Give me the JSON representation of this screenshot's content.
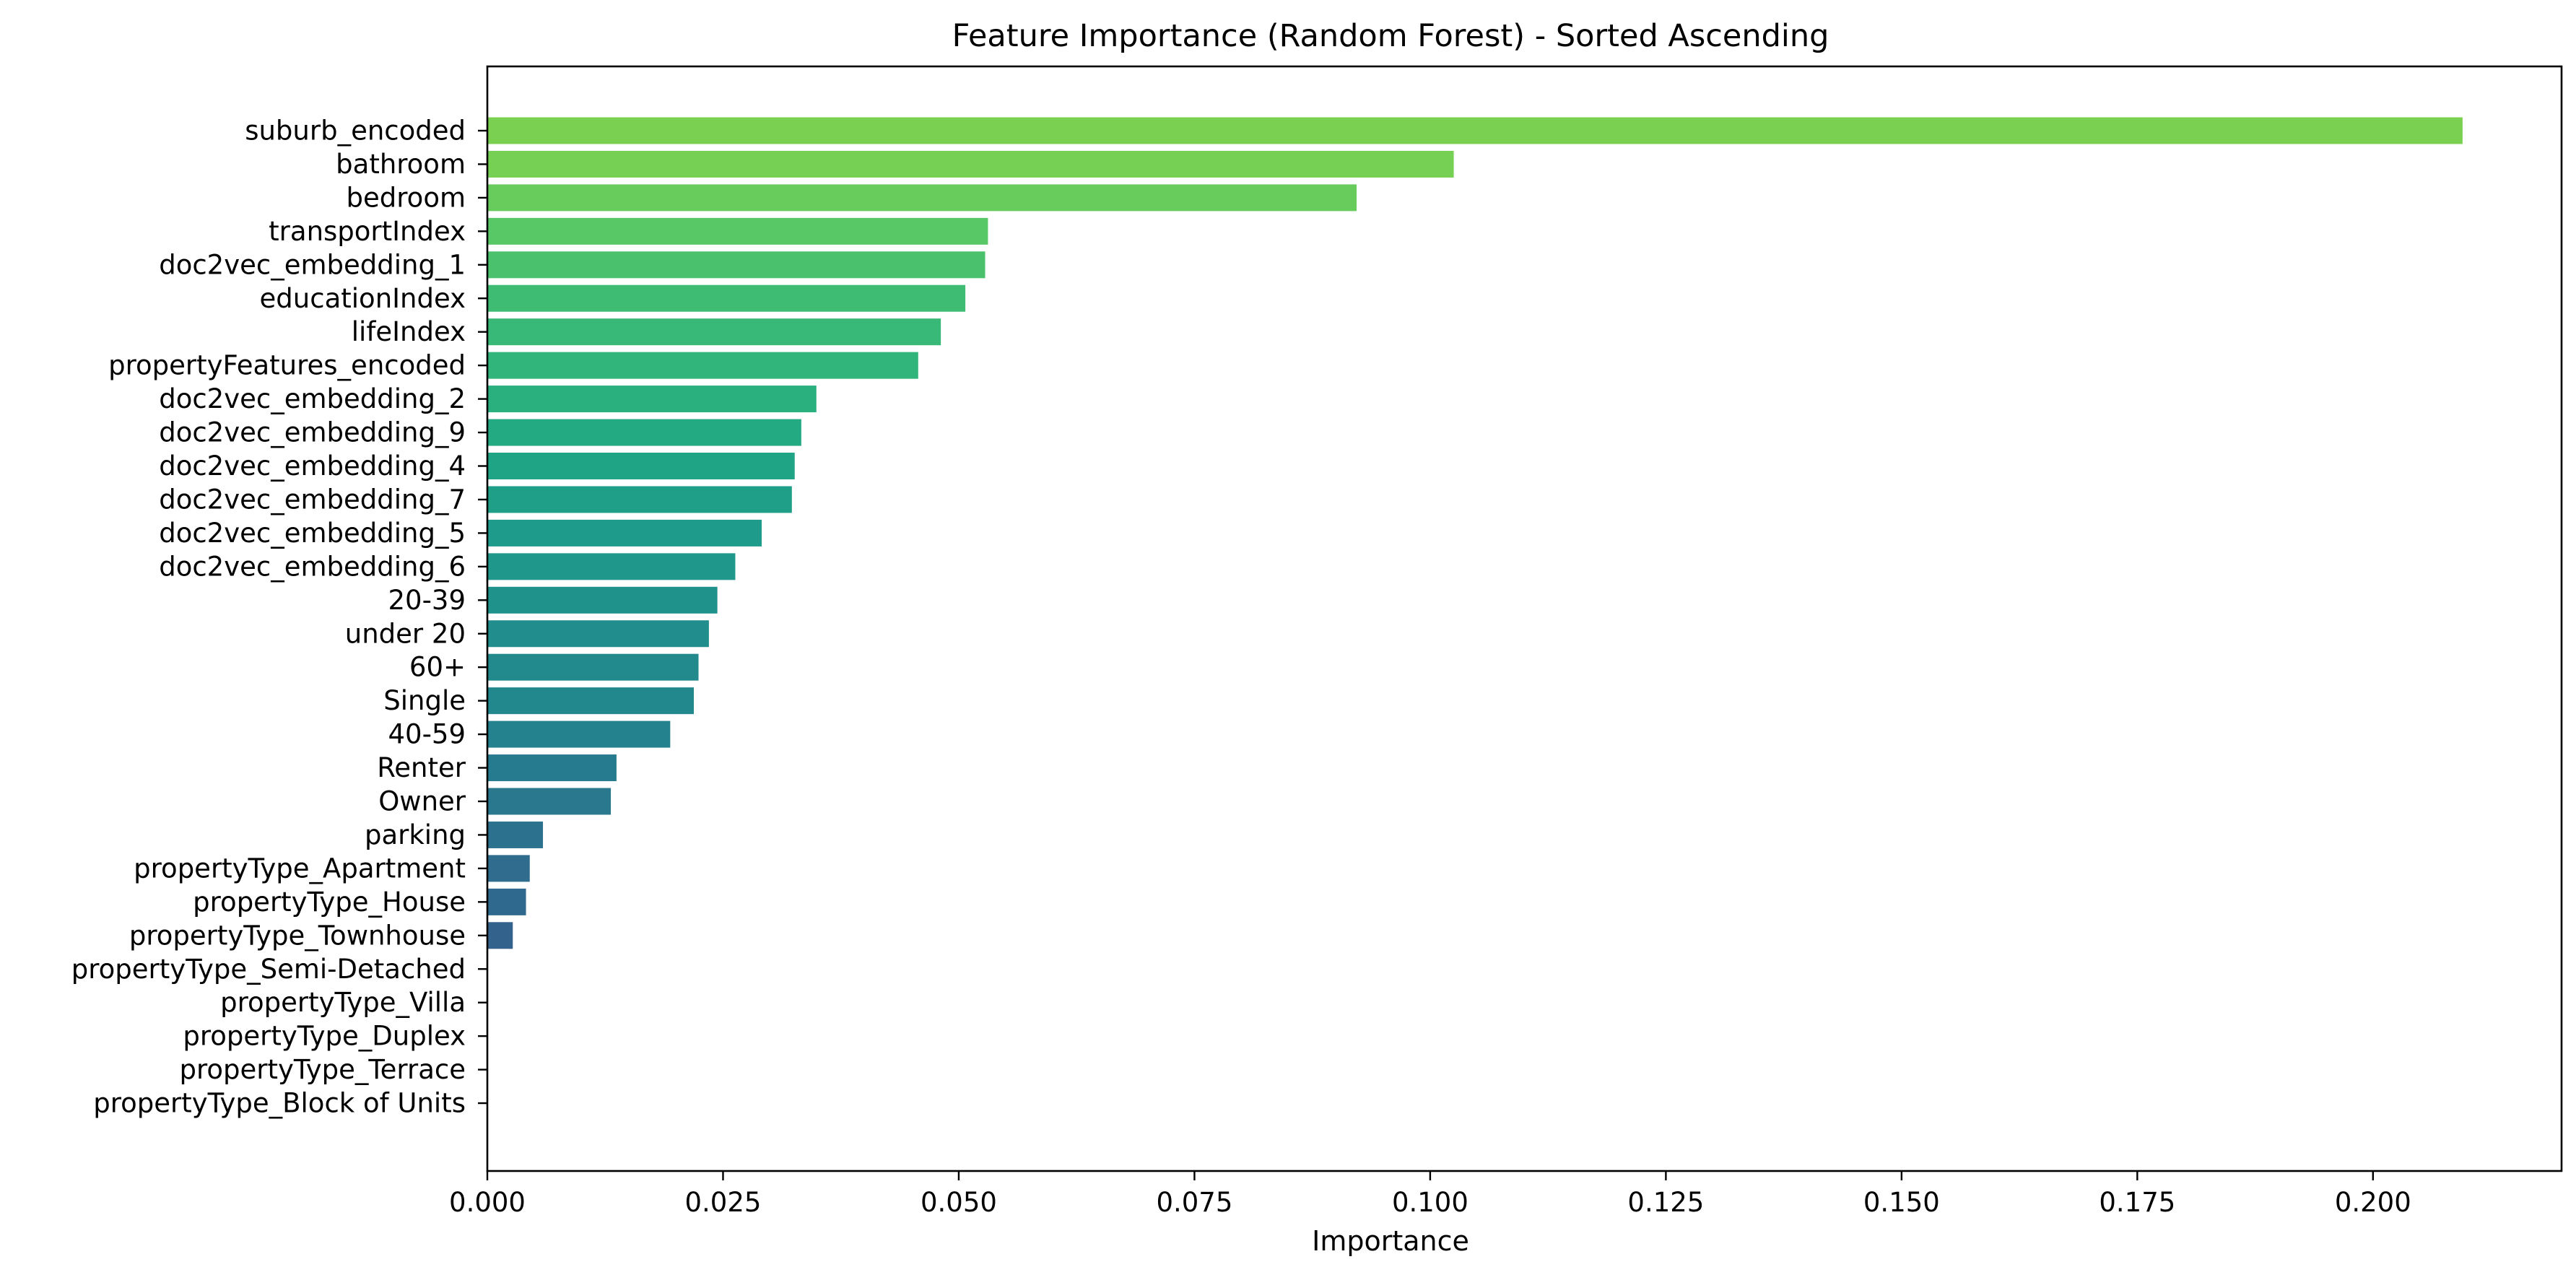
{
  "chart_data": {
    "type": "bar",
    "orientation": "horizontal",
    "title": "Feature Importance (Random Forest) - Sorted Ascending",
    "xlabel": "Importance",
    "ylabel": "",
    "xlim": [
      0,
      0.22
    ],
    "xticks": [
      0.0,
      0.025,
      0.05,
      0.075,
      0.1,
      0.125,
      0.15,
      0.175,
      0.2
    ],
    "xtick_labels": [
      "0.000",
      "0.025",
      "0.050",
      "0.075",
      "0.100",
      "0.125",
      "0.150",
      "0.175",
      "0.200"
    ],
    "grid": false,
    "legend": "none",
    "colormap": "viridis",
    "categories": [
      "suburb_encoded",
      "bathroom",
      "bedroom",
      "transportIndex",
      "doc2vec_embedding_1",
      "educationIndex",
      "lifeIndex",
      "propertyFeatures_encoded",
      "doc2vec_embedding_2",
      "doc2vec_embedding_9",
      "doc2vec_embedding_4",
      "doc2vec_embedding_7",
      "doc2vec_embedding_5",
      "doc2vec_embedding_6",
      "20-39",
      "under 20",
      "60+",
      "Single",
      "40-59",
      "Renter",
      "Owner",
      "parking",
      "propertyType_Apartment",
      "propertyType_House",
      "propertyType_Townhouse",
      "propertyType_Semi-Detached",
      "propertyType_Villa",
      "propertyType_Duplex",
      "propertyType_Terrace",
      "propertyType_Block of Units"
    ],
    "values": [
      0.2095,
      0.1025,
      0.0922,
      0.0531,
      0.0528,
      0.0507,
      0.0481,
      0.0457,
      0.0349,
      0.0333,
      0.0326,
      0.0323,
      0.0291,
      0.0263,
      0.0244,
      0.0235,
      0.0224,
      0.0219,
      0.0194,
      0.0137,
      0.0131,
      0.0059,
      0.0045,
      0.0041,
      0.0027,
      0.0,
      0.0,
      0.0,
      0.0,
      0.0
    ],
    "colors": [
      "#7ad151",
      "#75d054",
      "#67cc5c",
      "#58c765",
      "#4ac16d",
      "#3fbc73",
      "#38b977",
      "#31b57b",
      "#2aaf7f",
      "#24aa83",
      "#20a486",
      "#1f9f88",
      "#1e9b8a",
      "#1f978b",
      "#20928c",
      "#218e8d",
      "#228a8d",
      "#23878e",
      "#24828e",
      "#277b8e",
      "#29788e",
      "#2c718e",
      "#2f6c8e",
      "#30698e",
      "#33628d",
      "#355f8d",
      "#375a8c",
      "#39568c",
      "#3b528b",
      "#3d4e8a"
    ]
  }
}
